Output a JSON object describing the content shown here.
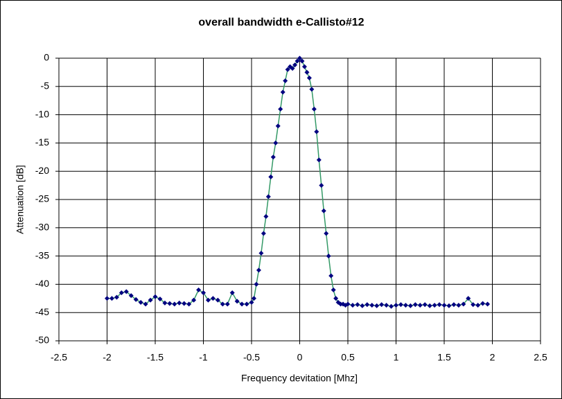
{
  "chart_data": {
    "type": "scatter-line",
    "title": "overall bandwidth e-Callisto#12",
    "x_label": "Frequency devitation [Mhz]",
    "y_label": "Attenuation [dB]",
    "xlim": [
      -2.5,
      2.5
    ],
    "xticks": [
      -2.5,
      -2,
      -1.5,
      -1,
      -0.5,
      0,
      0.5,
      1,
      1.5,
      2,
      2.5
    ],
    "ylim": [
      -50,
      0
    ],
    "yticks": [
      0,
      -5,
      -10,
      -15,
      -20,
      -25,
      -30,
      -35,
      -40,
      -45,
      -50
    ],
    "grid": true,
    "series": [
      {
        "color": "#000080",
        "line_color": "#339966",
        "x": [
          -2,
          -1.95,
          -1.9,
          -1.85,
          -1.8,
          -1.75,
          -1.7,
          -1.65,
          -1.6,
          -1.55,
          -1.5,
          -1.45,
          -1.4,
          -1.35,
          -1.3,
          -1.25,
          -1.2,
          -1.15,
          -1.1,
          -1.05,
          -1,
          -0.95,
          -0.9,
          -0.85,
          -0.8,
          -0.75,
          -0.7,
          -0.65,
          -0.6,
          -0.55,
          -0.5,
          -0.475,
          -0.45,
          -0.425,
          -0.4,
          -0.375,
          -0.35,
          -0.325,
          -0.3,
          -0.275,
          -0.25,
          -0.225,
          -0.2,
          -0.175,
          -0.15,
          -0.125,
          -0.1,
          -0.075,
          -0.05,
          -0.025,
          0,
          0.025,
          0.05,
          0.075,
          0.1,
          0.125,
          0.15,
          0.175,
          0.2,
          0.225,
          0.25,
          0.275,
          0.3,
          0.325,
          0.35,
          0.375,
          0.4,
          0.425,
          0.45,
          0.475,
          0.5,
          0.55,
          0.6,
          0.65,
          0.7,
          0.75,
          0.8,
          0.85,
          0.9,
          0.95,
          1,
          1.05,
          1.1,
          1.15,
          1.2,
          1.25,
          1.3,
          1.35,
          1.4,
          1.45,
          1.5,
          1.55,
          1.6,
          1.65,
          1.7,
          1.75,
          1.8,
          1.85,
          1.9,
          1.95
        ],
        "y": [
          -42.5,
          -42.5,
          -42.3,
          -41.5,
          -41.3,
          -42,
          -42.7,
          -43.2,
          -43.5,
          -42.8,
          -42.2,
          -42.6,
          -43.3,
          -43.4,
          -43.5,
          -43.3,
          -43.4,
          -43.5,
          -42.8,
          -41,
          -41.5,
          -42.8,
          -42.5,
          -42.8,
          -43.5,
          -43.5,
          -41.5,
          -43,
          -43.5,
          -43.5,
          -43.2,
          -42.5,
          -40,
          -37.5,
          -34.5,
          -31,
          -28,
          -24.5,
          -21,
          -17.5,
          -15,
          -12,
          -9,
          -6,
          -4,
          -2,
          -1.5,
          -1.8,
          -1.2,
          -0.5,
          0,
          -0.5,
          -1.5,
          -2.5,
          -3.5,
          -5.5,
          -9,
          -13,
          -18,
          -22.5,
          -27,
          -31,
          -35,
          -38.5,
          -41,
          -42.5,
          -43.2,
          -43.5,
          -43.5,
          -43.7,
          -43.5,
          -43.7,
          -43.6,
          -43.8,
          -43.6,
          -43.7,
          -43.8,
          -43.6,
          -43.7,
          -43.9,
          -43.7,
          -43.6,
          -43.7,
          -43.8,
          -43.6,
          -43.7,
          -43.6,
          -43.8,
          -43.7,
          -43.6,
          -43.7,
          -43.8,
          -43.6,
          -43.7,
          -43.5,
          -42.5,
          -43.6,
          -43.7,
          -43.4,
          -43.5
        ]
      }
    ]
  }
}
